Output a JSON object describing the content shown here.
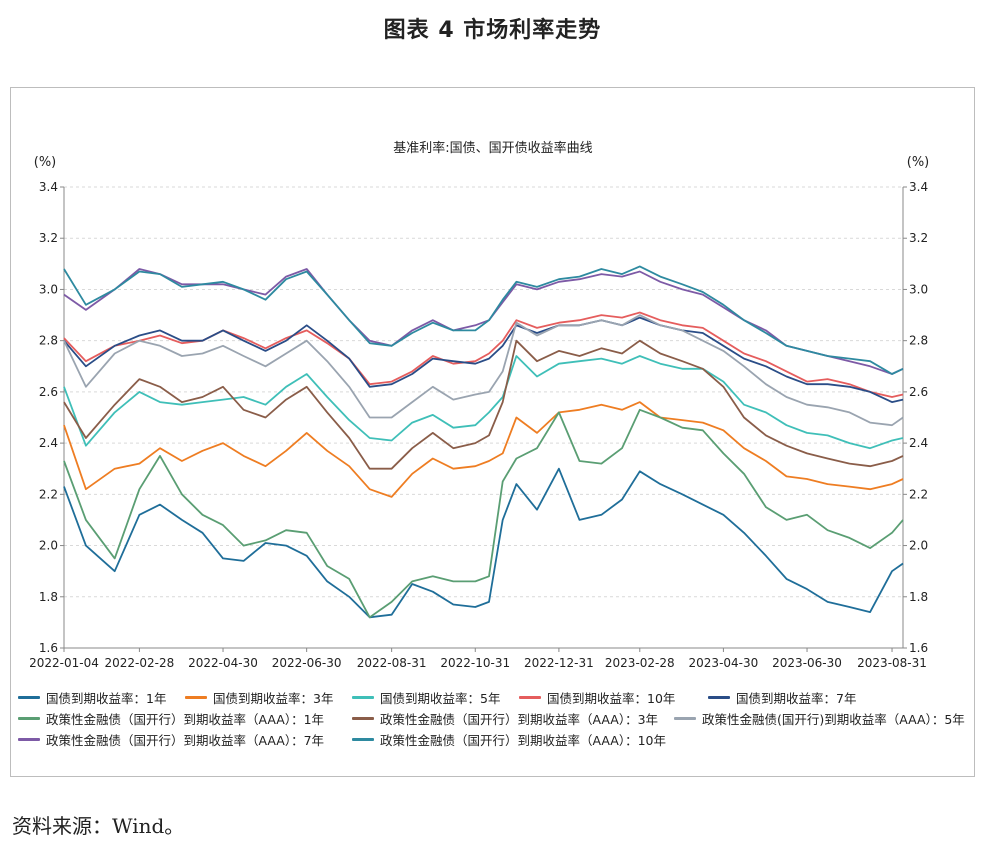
{
  "figure_title": "图表 4  市场利率走势",
  "source": "资料来源：Wind。",
  "chart_data": {
    "type": "line",
    "title": "基准利率:国债、国开债收益率曲线",
    "ylabel_left": "(%)",
    "ylabel_right": "(%)",
    "ylim": [
      1.6,
      3.4
    ],
    "yticks": [
      "1.6",
      "1.8",
      "2.0",
      "2.2",
      "2.4",
      "2.6",
      "2.8",
      "3.0",
      "3.2",
      "3.4"
    ],
    "xlim": [
      "2022-01-04",
      "2023-09-08"
    ],
    "xticks": [
      "2022-01-04",
      "2022-02-28",
      "2022-04-30",
      "2022-06-30",
      "2022-08-31",
      "2022-10-31",
      "2022-12-31",
      "2023-02-28",
      "2023-04-30",
      "2023-06-30",
      "2023-08-31"
    ],
    "x": [
      "2022-01-04",
      "2022-01-20",
      "2022-02-10",
      "2022-02-28",
      "2022-03-15",
      "2022-03-31",
      "2022-04-15",
      "2022-04-30",
      "2022-05-15",
      "2022-05-31",
      "2022-06-15",
      "2022-06-30",
      "2022-07-15",
      "2022-07-31",
      "2022-08-15",
      "2022-08-31",
      "2022-09-15",
      "2022-09-30",
      "2022-10-15",
      "2022-10-31",
      "2022-11-10",
      "2022-11-20",
      "2022-11-30",
      "2022-12-15",
      "2022-12-31",
      "2023-01-15",
      "2023-01-31",
      "2023-02-15",
      "2023-02-28",
      "2023-03-15",
      "2023-03-31",
      "2023-04-15",
      "2023-04-30",
      "2023-05-15",
      "2023-05-31",
      "2023-06-15",
      "2023-06-30",
      "2023-07-15",
      "2023-07-31",
      "2023-08-15",
      "2023-08-31",
      "2023-09-08"
    ],
    "series": [
      {
        "name": "国债到期收益率：1年",
        "color": "#1f6e99",
        "values": [
          2.23,
          2.0,
          1.9,
          2.12,
          2.16,
          2.1,
          2.05,
          1.95,
          1.94,
          2.01,
          2.0,
          1.96,
          1.86,
          1.8,
          1.72,
          1.73,
          1.85,
          1.82,
          1.77,
          1.76,
          1.78,
          2.1,
          2.24,
          2.14,
          2.3,
          2.1,
          2.12,
          2.18,
          2.29,
          2.24,
          2.2,
          2.16,
          2.12,
          2.05,
          1.96,
          1.87,
          1.83,
          1.78,
          1.76,
          1.74,
          1.9,
          1.93
        ]
      },
      {
        "name": "国债到期收益率：3年",
        "color": "#ee7d22",
        "values": [
          2.47,
          2.22,
          2.3,
          2.32,
          2.38,
          2.33,
          2.37,
          2.4,
          2.35,
          2.31,
          2.37,
          2.44,
          2.37,
          2.31,
          2.22,
          2.19,
          2.28,
          2.34,
          2.3,
          2.31,
          2.33,
          2.36,
          2.5,
          2.44,
          2.52,
          2.53,
          2.55,
          2.53,
          2.56,
          2.5,
          2.49,
          2.48,
          2.45,
          2.38,
          2.33,
          2.27,
          2.26,
          2.24,
          2.23,
          2.22,
          2.24,
          2.26
        ]
      },
      {
        "name": "国债到期收益率：5年",
        "color": "#3fbfb8",
        "values": [
          2.62,
          2.39,
          2.52,
          2.6,
          2.56,
          2.55,
          2.56,
          2.57,
          2.58,
          2.55,
          2.62,
          2.67,
          2.58,
          2.49,
          2.42,
          2.41,
          2.48,
          2.51,
          2.46,
          2.47,
          2.52,
          2.58,
          2.74,
          2.66,
          2.71,
          2.72,
          2.73,
          2.71,
          2.74,
          2.71,
          2.69,
          2.69,
          2.64,
          2.55,
          2.52,
          2.47,
          2.44,
          2.43,
          2.4,
          2.38,
          2.41,
          2.42
        ]
      },
      {
        "name": "国债到期收益率：10年",
        "color": "#e55d5d",
        "values": [
          2.81,
          2.72,
          2.78,
          2.8,
          2.82,
          2.79,
          2.8,
          2.84,
          2.81,
          2.77,
          2.81,
          2.84,
          2.79,
          2.73,
          2.63,
          2.64,
          2.68,
          2.74,
          2.71,
          2.72,
          2.75,
          2.8,
          2.88,
          2.85,
          2.87,
          2.88,
          2.9,
          2.89,
          2.91,
          2.88,
          2.86,
          2.85,
          2.8,
          2.75,
          2.72,
          2.68,
          2.64,
          2.65,
          2.63,
          2.6,
          2.58,
          2.59
        ]
      },
      {
        "name": "国债到期收益率：7年",
        "color": "#2a4d87",
        "values": [
          2.8,
          2.7,
          2.78,
          2.82,
          2.84,
          2.8,
          2.8,
          2.84,
          2.8,
          2.76,
          2.8,
          2.86,
          2.8,
          2.73,
          2.62,
          2.63,
          2.67,
          2.73,
          2.72,
          2.71,
          2.73,
          2.78,
          2.86,
          2.83,
          2.86,
          2.86,
          2.88,
          2.86,
          2.89,
          2.86,
          2.84,
          2.83,
          2.78,
          2.73,
          2.7,
          2.66,
          2.63,
          2.63,
          2.62,
          2.6,
          2.56,
          2.57
        ]
      },
      {
        "name": "政策性金融债（国开行）到期收益率（AAA）：1年",
        "color": "#5a9e73",
        "values": [
          2.33,
          2.1,
          1.95,
          2.22,
          2.35,
          2.2,
          2.12,
          2.08,
          2.0,
          2.02,
          2.06,
          2.05,
          1.92,
          1.87,
          1.72,
          1.78,
          1.86,
          1.88,
          1.86,
          1.86,
          1.88,
          2.25,
          2.34,
          2.38,
          2.52,
          2.33,
          2.32,
          2.38,
          2.53,
          2.5,
          2.46,
          2.45,
          2.36,
          2.28,
          2.15,
          2.1,
          2.12,
          2.06,
          2.03,
          1.99,
          2.05,
          2.1
        ]
      },
      {
        "name": "政策性金融债（国开行）到期收益率（AAA）：3年",
        "color": "#8a5d49",
        "values": [
          2.56,
          2.42,
          2.55,
          2.65,
          2.62,
          2.56,
          2.58,
          2.62,
          2.53,
          2.5,
          2.57,
          2.62,
          2.52,
          2.42,
          2.3,
          2.3,
          2.38,
          2.44,
          2.38,
          2.4,
          2.43,
          2.56,
          2.8,
          2.72,
          2.76,
          2.74,
          2.77,
          2.75,
          2.8,
          2.75,
          2.72,
          2.69,
          2.62,
          2.5,
          2.43,
          2.39,
          2.36,
          2.34,
          2.32,
          2.31,
          2.33,
          2.35
        ]
      },
      {
        "name": "政策性金融债(国开行)到期收益率（AAA）：5年",
        "color": "#9aa4b0",
        "values": [
          2.8,
          2.62,
          2.75,
          2.8,
          2.78,
          2.74,
          2.75,
          2.78,
          2.74,
          2.7,
          2.75,
          2.8,
          2.72,
          2.62,
          2.5,
          2.5,
          2.56,
          2.62,
          2.57,
          2.59,
          2.6,
          2.68,
          2.87,
          2.82,
          2.86,
          2.86,
          2.88,
          2.86,
          2.9,
          2.86,
          2.84,
          2.8,
          2.76,
          2.7,
          2.63,
          2.58,
          2.55,
          2.54,
          2.52,
          2.48,
          2.47,
          2.5
        ]
      },
      {
        "name": "政策性金融债（国开行）到期收益率（AAA）：7年",
        "color": "#7d5aa6",
        "values": [
          2.98,
          2.92,
          3.0,
          3.08,
          3.06,
          3.02,
          3.02,
          3.02,
          3.0,
          2.98,
          3.05,
          3.08,
          2.98,
          2.88,
          2.8,
          2.78,
          2.84,
          2.88,
          2.84,
          2.86,
          2.88,
          2.95,
          3.02,
          3.0,
          3.03,
          3.04,
          3.06,
          3.05,
          3.07,
          3.03,
          3.0,
          2.98,
          2.93,
          2.88,
          2.84,
          2.78,
          2.76,
          2.74,
          2.72,
          2.7,
          2.67,
          2.69
        ]
      },
      {
        "name": "政策性金融债（国开行）到期收益率（AAA）：10年",
        "color": "#2e8aa0",
        "values": [
          3.08,
          2.94,
          3.0,
          3.07,
          3.06,
          3.01,
          3.02,
          3.03,
          3.0,
          2.96,
          3.04,
          3.07,
          2.98,
          2.88,
          2.79,
          2.78,
          2.83,
          2.87,
          2.84,
          2.84,
          2.88,
          2.96,
          3.03,
          3.01,
          3.04,
          3.05,
          3.08,
          3.06,
          3.09,
          3.05,
          3.02,
          2.99,
          2.94,
          2.88,
          2.83,
          2.78,
          2.76,
          2.74,
          2.73,
          2.72,
          2.67,
          2.69
        ]
      }
    ]
  }
}
